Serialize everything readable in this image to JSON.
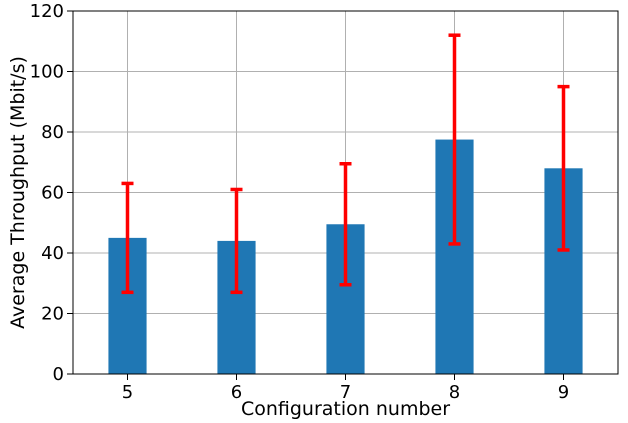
{
  "chart_data": {
    "type": "bar",
    "title": "",
    "xlabel": "Configuration number",
    "ylabel": "Average Throughput (Mbit/s)",
    "categories": [
      "5",
      "6",
      "7",
      "8",
      "9"
    ],
    "values": [
      45,
      44,
      49.5,
      77.5,
      68
    ],
    "error_bars": [
      {
        "low": 27,
        "high": 63
      },
      {
        "low": 27,
        "high": 61
      },
      {
        "low": 29.5,
        "high": 69.5
      },
      {
        "low": 43,
        "high": 112
      },
      {
        "low": 41,
        "high": 95
      }
    ],
    "ylim": [
      0,
      120
    ],
    "yticks": [
      "0",
      "20",
      "40",
      "60",
      "80",
      "100",
      "120"
    ],
    "grid": true,
    "legend": "none",
    "colors": {
      "bar": "#1f77b4",
      "error_bar": "#ff0000",
      "grid": "#b0b0b0"
    }
  }
}
